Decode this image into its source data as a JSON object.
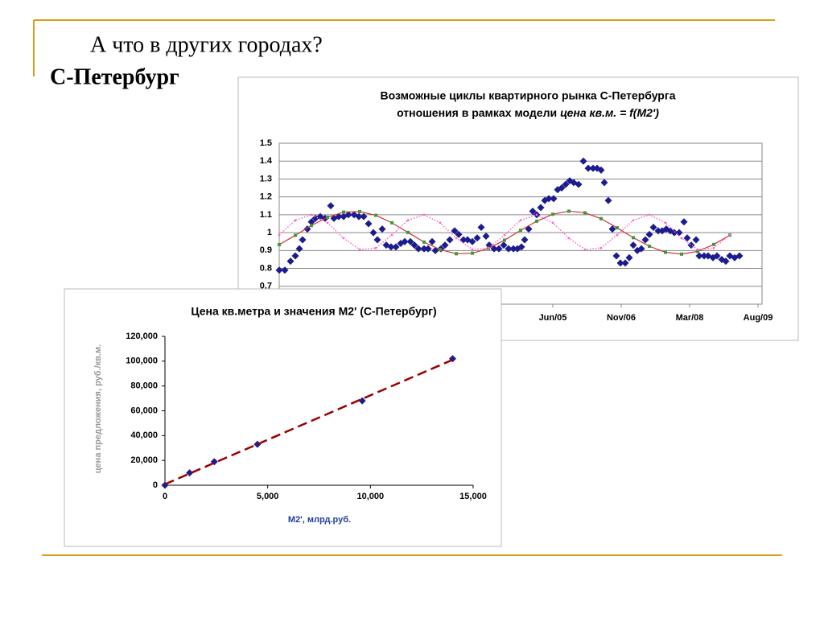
{
  "slide_title": "А что в других городах?",
  "slide_subtitle": "С-Петербург",
  "chart_data": [
    {
      "type": "scatter",
      "title": {
        "line1": "Возможные циклы квартирного рынка С-Петербурга",
        "line2": "отношения в рамках модели",
        "line2_italic": "цена кв.м. = f(M2')"
      },
      "xlim": [
        0,
        120
      ],
      "ylim": [
        0.6,
        1.5
      ],
      "xticks": [
        {
          "value": 68,
          "label": "Jun/05"
        },
        {
          "value": 85,
          "label": "Nov/06"
        },
        {
          "value": 102,
          "label": "Mar/08"
        },
        {
          "value": 119,
          "label": "Aug/09"
        }
      ],
      "yticks": [
        0.7,
        0.8,
        0.9,
        1,
        1.1,
        1.2,
        1.3,
        1.4,
        1.5
      ],
      "grid": true,
      "series": [
        {
          "color": "#1c1c8e",
          "marker": "diamond",
          "x": [
            0,
            1.4,
            2.8,
            4,
            5,
            5.8,
            7,
            8,
            9,
            10.2,
            11.4,
            12.8,
            13.6,
            14.8,
            16,
            17.2,
            18.6,
            19.8,
            21,
            22.2,
            23.4,
            24.4,
            25.6,
            26.6,
            27.8,
            29,
            30.2,
            31.2,
            32.6,
            33.6,
            34.6,
            36,
            37,
            38,
            38.8,
            40.2,
            41.2,
            42.4,
            43.6,
            44.6,
            45.8,
            46.8,
            48,
            49.2,
            50.2,
            51.4,
            52.2,
            53.4,
            54.6,
            55.8,
            57,
            58.2,
            59.2,
            60.2,
            61,
            62,
            63,
            64,
            65,
            66,
            67,
            68.2,
            69.2,
            70.2,
            71.2,
            72.2,
            73.2,
            74.4,
            75.6,
            76.8,
            78,
            79,
            80,
            80.8,
            81.8,
            82.8,
            83.8,
            84.8,
            86,
            87,
            88,
            89,
            90,
            91,
            92,
            93,
            94.2,
            95.2,
            96.2,
            97.2,
            98.2,
            99.4,
            100.6,
            101.4,
            102.4,
            103.6,
            104.4,
            105.6,
            106.6,
            107.8,
            108.8,
            110,
            111,
            112,
            113.2,
            114.4
          ],
          "values": [
            0.79,
            0.79,
            0.84,
            0.87,
            0.91,
            0.96,
            1.02,
            1.06,
            1.08,
            1.09,
            1.08,
            1.15,
            1.08,
            1.09,
            1.09,
            1.1,
            1.1,
            1.09,
            1.09,
            1.05,
            1.0,
            0.96,
            1.02,
            0.93,
            0.92,
            0.92,
            0.94,
            0.95,
            0.95,
            0.93,
            0.91,
            0.91,
            0.91,
            0.95,
            0.9,
            0.91,
            0.93,
            0.96,
            1.01,
            0.99,
            0.96,
            0.96,
            0.95,
            0.97,
            1.03,
            0.98,
            0.93,
            0.91,
            0.91,
            0.93,
            0.91,
            0.91,
            0.91,
            0.92,
            0.96,
            1.02,
            1.12,
            1.1,
            1.14,
            1.18,
            1.19,
            1.19,
            1.24,
            1.25,
            1.27,
            1.29,
            1.28,
            1.27,
            1.4,
            1.36,
            1.36,
            1.36,
            1.35,
            1.28,
            1.18,
            1.02,
            0.87,
            0.83,
            0.83,
            0.86,
            0.93,
            0.9,
            0.91,
            0.96,
            0.99,
            1.03,
            1.01,
            1.01,
            1.02,
            1.01,
            1.0,
            1.0,
            1.06,
            0.97,
            0.93,
            0.96,
            0.87,
            0.87,
            0.87,
            0.86,
            0.87,
            0.85,
            0.84,
            0.87,
            0.86,
            0.87
          ]
        },
        {
          "color": "#3c9a3c",
          "line_color": "#cc3333",
          "marker": "square",
          "x": [
            0,
            4,
            8,
            12,
            16,
            20,
            24,
            28,
            32,
            36,
            40,
            44,
            48,
            52,
            56,
            60,
            64,
            68,
            72,
            76,
            80,
            84,
            88,
            92,
            96,
            100,
            104,
            108,
            112
          ],
          "values": [
            0.933,
            0.985,
            1.04,
            1.086,
            1.115,
            1.118,
            1.097,
            1.055,
            1.001,
            0.947,
            0.905,
            0.882,
            0.885,
            0.912,
            0.958,
            1.013,
            1.064,
            1.103,
            1.12,
            1.111,
            1.078,
            1.027,
            0.972,
            0.924,
            0.89,
            0.88,
            0.895,
            0.934,
            0.986
          ]
        },
        {
          "color": "#ff66cc",
          "marker": "dot",
          "dotted": true,
          "x": [
            0,
            4,
            8,
            12,
            16,
            20,
            24,
            28,
            32,
            36,
            40,
            44,
            48,
            52,
            56,
            60,
            64,
            68,
            72,
            76,
            80,
            84,
            88,
            92,
            96,
            100,
            104,
            108,
            112
          ],
          "values": [
            0.987,
            1.069,
            1.1,
            1.055,
            0.969,
            0.906,
            0.914,
            0.987,
            1.069,
            1.1,
            1.055,
            0.969,
            0.906,
            0.914,
            0.987,
            1.069,
            1.1,
            1.055,
            0.969,
            0.906,
            0.914,
            0.987,
            1.069,
            1.1,
            1.055,
            0.969,
            0.906,
            0.914,
            0.987
          ]
        }
      ]
    },
    {
      "type": "scatter",
      "title": "Цена кв.метра и значения М2' (С-Петербург)",
      "x_label": "M2', млрд.руб.",
      "y_label": "цена предложения, руб./кв.м.",
      "xlim": [
        0,
        15000
      ],
      "ylim": [
        0,
        120000
      ],
      "xticks": [
        0,
        {
          "value": 5000,
          "label": "5,000"
        },
        {
          "value": 10000,
          "label": "10,000"
        },
        {
          "value": 15000,
          "label": "15,000"
        }
      ],
      "yticks": [
        0,
        {
          "value": 20000,
          "label": "20,000"
        },
        {
          "value": 40000,
          "label": "40,000"
        },
        {
          "value": 60000,
          "label": "60,000"
        },
        {
          "value": 80000,
          "label": "80,000"
        },
        {
          "value": 100000,
          "label": "100,000"
        },
        {
          "value": 120000,
          "label": "120,000"
        }
      ],
      "grid": false,
      "trendline": true,
      "trendline_color": "#990000",
      "series": [
        {
          "color": "#1c1c8e",
          "marker": "diamond",
          "x": [
            0,
            1200,
            2400,
            4500,
            9600,
            14000
          ],
          "values": [
            0,
            10000,
            19000,
            33000,
            68000,
            102000
          ]
        }
      ]
    }
  ]
}
